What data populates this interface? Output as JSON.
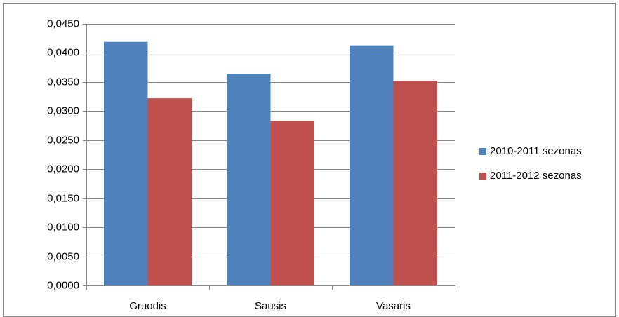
{
  "chart_data": {
    "type": "bar",
    "categories": [
      "Gruodis",
      "Sausis",
      "Vasaris"
    ],
    "series": [
      {
        "name": "2010-2011 sezonas",
        "color": "#4f81bd",
        "values": [
          0.0419,
          0.0364,
          0.0413
        ]
      },
      {
        "name": "2011-2012 sezonas",
        "color": "#c0504d",
        "values": [
          0.0322,
          0.0283,
          0.0352
        ]
      }
    ],
    "ylim": [
      0,
      0.045
    ],
    "yticks": [
      {
        "value": 0,
        "label": "0,0000"
      },
      {
        "value": 0.005,
        "label": "0,0050"
      },
      {
        "value": 0.01,
        "label": "0,0100"
      },
      {
        "value": 0.015,
        "label": "0,0150"
      },
      {
        "value": 0.02,
        "label": "0,0200"
      },
      {
        "value": 0.025,
        "label": "0,0250"
      },
      {
        "value": 0.03,
        "label": "0,0300"
      },
      {
        "value": 0.035,
        "label": "0,0350"
      },
      {
        "value": 0.04,
        "label": "0,0400"
      },
      {
        "value": 0.045,
        "label": "0,0450"
      }
    ],
    "grid": true,
    "legend": "right"
  }
}
